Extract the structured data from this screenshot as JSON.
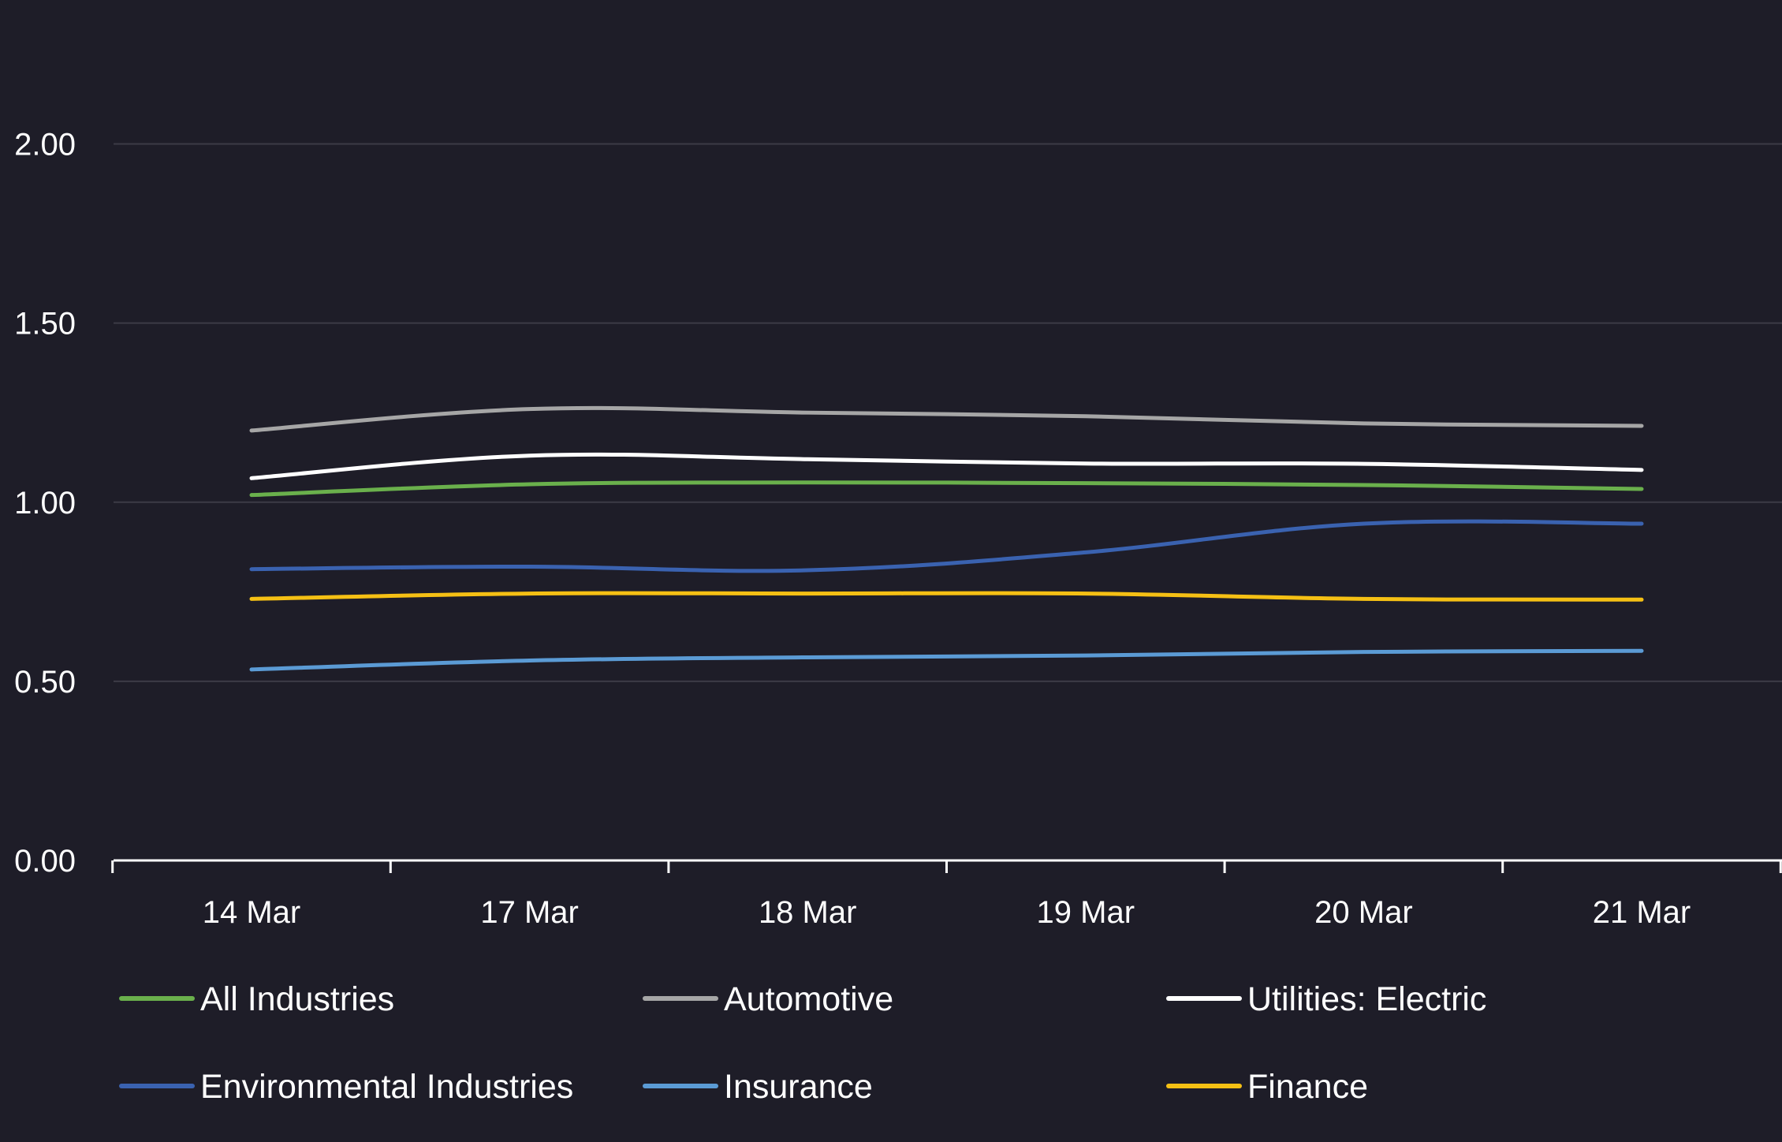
{
  "chart_data": {
    "type": "line",
    "title": "",
    "xlabel": "",
    "ylabel": "",
    "categories": [
      "14 Mar",
      "17 Mar",
      "18 Mar",
      "19 Mar",
      "20 Mar",
      "21 Mar"
    ],
    "yticks": [
      "0.00",
      "0.50",
      "1.00",
      "1.50",
      "2.00"
    ],
    "ylim": [
      0,
      2
    ],
    "grid": true,
    "legend_position": "bottom",
    "series": [
      {
        "name": "All Industries",
        "color": "#6ab04c",
        "values": [
          1.02,
          1.05,
          1.055,
          1.053,
          1.048,
          1.037
        ]
      },
      {
        "name": "Automotive",
        "color": "#a6a6a6",
        "values": [
          1.2,
          1.26,
          1.25,
          1.24,
          1.22,
          1.213
        ]
      },
      {
        "name": "Utilities: Electric",
        "color": "#ffffff",
        "values": [
          1.067,
          1.13,
          1.12,
          1.108,
          1.107,
          1.09
        ]
      },
      {
        "name": "Environmental Industries",
        "color": "#3a62b0",
        "values": [
          0.813,
          0.82,
          0.81,
          0.86,
          0.94,
          0.94
        ]
      },
      {
        "name": "Insurance",
        "color": "#5b9bd5",
        "values": [
          0.533,
          0.558,
          0.567,
          0.572,
          0.582,
          0.585
        ]
      },
      {
        "name": "Finance",
        "color": "#f5c014",
        "values": [
          0.73,
          0.745,
          0.745,
          0.745,
          0.73,
          0.728
        ]
      }
    ]
  }
}
